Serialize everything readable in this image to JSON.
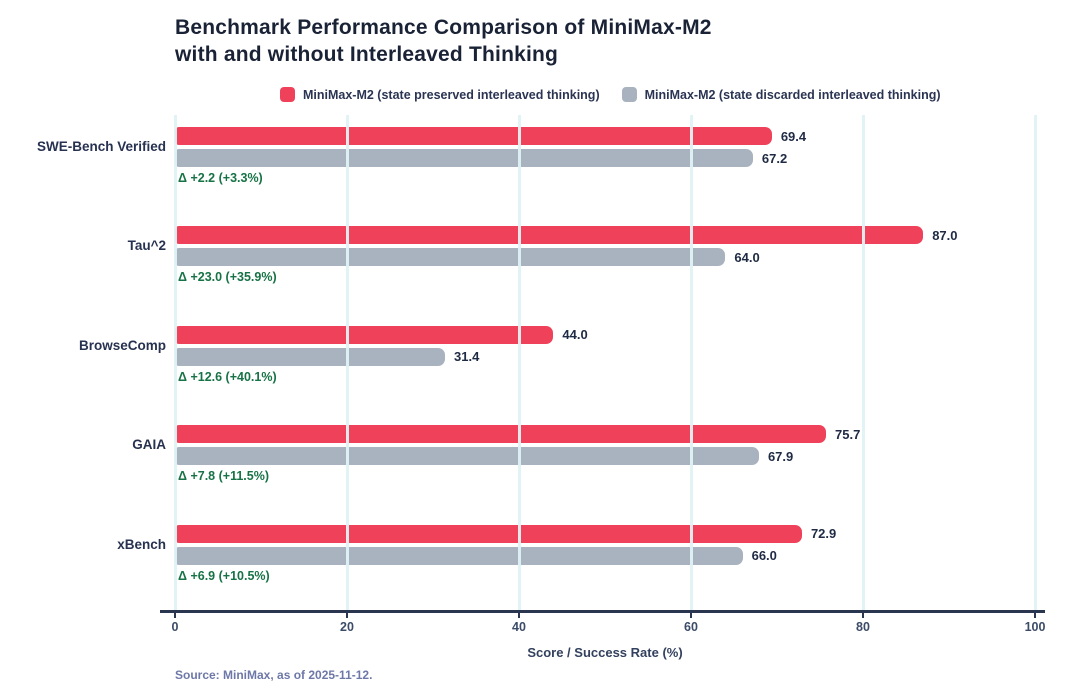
{
  "title": {
    "line1": "Benchmark Performance Comparison of MiniMax-M2",
    "line2": "with and without Interleaved Thinking"
  },
  "legend": [
    {
      "label": "MiniMax-M2 (state preserved interleaved thinking)",
      "color": "#EF415A"
    },
    {
      "label": "MiniMax-M2 (state discarded interleaved thinking)",
      "color": "#A9B2BF"
    }
  ],
  "chart_data": {
    "type": "bar",
    "orientation": "horizontal",
    "title": "Benchmark Performance Comparison of MiniMax-M2 with and without Interleaved Thinking",
    "categories": [
      "SWE-Bench Verified",
      "Tau^2",
      "BrowseComp",
      "GAIA",
      "xBench"
    ],
    "series": [
      {
        "name": "MiniMax-M2 (state preserved interleaved thinking)",
        "color": "#EF415A",
        "values": [
          69.4,
          87.0,
          44.0,
          75.7,
          72.9
        ]
      },
      {
        "name": "MiniMax-M2 (state discarded interleaved thinking)",
        "color": "#A9B2BF",
        "values": [
          67.2,
          64.0,
          31.4,
          67.9,
          66.0
        ]
      }
    ],
    "value_labels": [
      [
        "69.4",
        "87.0",
        "44.0",
        "75.7",
        "72.9"
      ],
      [
        "67.2",
        "64.0",
        "31.4",
        "67.9",
        "66.0"
      ]
    ],
    "deltas": [
      "Δ +2.2 (+3.3%)",
      "Δ +23.0 (+35.9%)",
      "Δ +12.6 (+40.1%)",
      "Δ +7.8 (+11.5%)",
      "Δ +6.9 (+10.5%)"
    ],
    "delta_color": "#177245",
    "xlabel": "Score / Success Rate (%)",
    "xlim": [
      0,
      100
    ],
    "xticks": [
      "0",
      "20",
      "40",
      "60",
      "80",
      "100"
    ],
    "grid": true,
    "gridline_color": "#E0F2F5",
    "legend_position": "top"
  },
  "axis": {
    "label": "Score / Success Rate (%)"
  },
  "footer": {
    "source": "Source: MiniMax, as of 2025-11-12."
  }
}
